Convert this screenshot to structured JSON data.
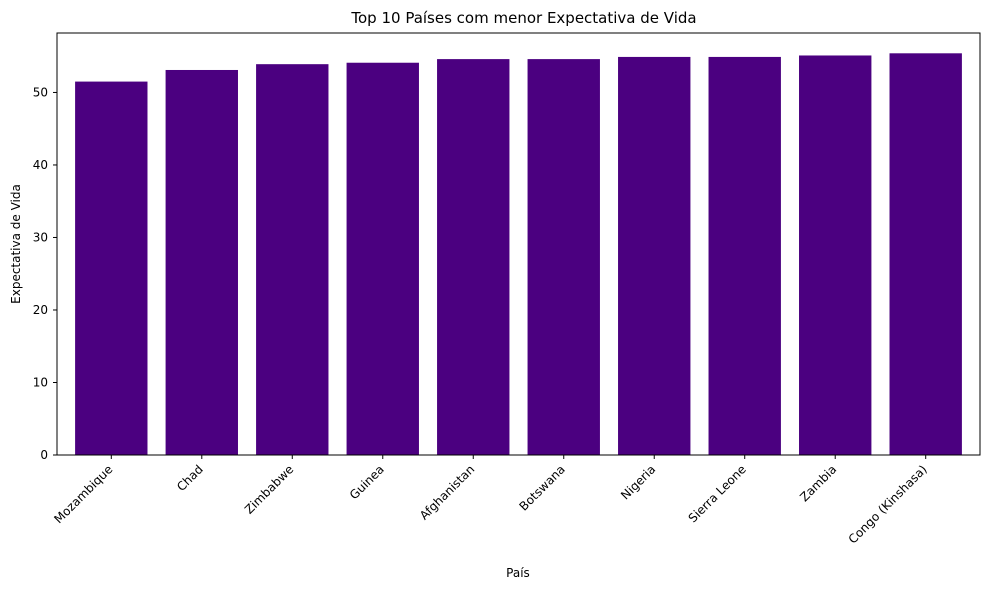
{
  "chart_data": {
    "type": "bar",
    "title": "Top 10 Países com menor Expectativa de Vida",
    "xlabel": "País",
    "ylabel": "Expectativa de Vida",
    "categories": [
      "Mozambique",
      "Chad",
      "Zimbabwe",
      "Guinea",
      "Afghanistan",
      "Botswana",
      "Nigeria",
      "Sierra Leone",
      "Zambia",
      "Congo (Kinshasa)"
    ],
    "values": [
      51.5,
      53.1,
      53.9,
      54.1,
      54.6,
      54.6,
      54.9,
      54.9,
      55.1,
      55.4
    ],
    "ylim": [
      0,
      58.2
    ],
    "yticks": [
      0,
      10,
      20,
      30,
      40,
      50
    ],
    "bar_color": "#4b0080",
    "grid": false,
    "legend": "none"
  }
}
